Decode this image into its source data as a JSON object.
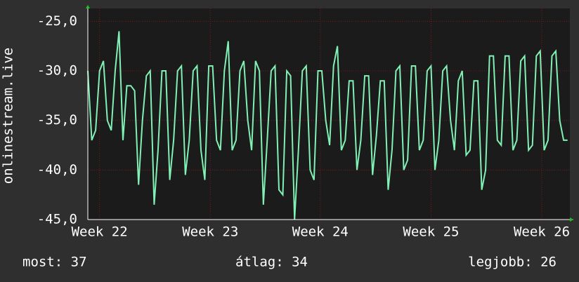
{
  "chart_data": {
    "type": "line",
    "y_label": "onlinestream.live",
    "xlim": [
      0,
      30.9
    ],
    "xticks": [
      {
        "value": 0.75,
        "label": "Week 22"
      },
      {
        "value": 7.85,
        "label": "Week 23"
      },
      {
        "value": 14.9,
        "label": "Week 24"
      },
      {
        "value": 22.0,
        "label": "Week 25"
      },
      {
        "value": 29.1,
        "label": "Week 26"
      }
    ],
    "ylim": [
      -45,
      -23.7
    ],
    "yticks": [
      {
        "value": -25,
        "label": "-25,0"
      },
      {
        "value": -30,
        "label": "-30,0"
      },
      {
        "value": -35,
        "label": "-35,0"
      },
      {
        "value": -40,
        "label": "-40,0"
      },
      {
        "value": -45,
        "label": "-45,0"
      }
    ],
    "grid": true,
    "x": [
      0,
      0.25,
      0.5,
      0.75,
      1,
      1.25,
      1.5,
      1.75,
      2,
      2.25,
      2.5,
      2.75,
      3,
      3.25,
      3.5,
      3.75,
      4,
      4.25,
      4.5,
      4.75,
      5,
      5.25,
      5.5,
      5.75,
      6,
      6.25,
      6.5,
      6.75,
      7,
      7.25,
      7.5,
      7.75,
      8,
      8.25,
      8.5,
      8.75,
      9,
      9.25,
      9.5,
      9.75,
      10,
      10.25,
      10.5,
      10.75,
      11,
      11.25,
      11.5,
      11.75,
      12,
      12.25,
      12.5,
      12.75,
      13,
      13.25,
      13.5,
      13.75,
      14,
      14.25,
      14.5,
      14.75,
      15,
      15.25,
      15.5,
      15.75,
      16,
      16.25,
      16.5,
      16.75,
      17,
      17.25,
      17.5,
      17.75,
      18,
      18.25,
      18.5,
      18.75,
      19,
      19.25,
      19.5,
      19.75,
      20,
      20.25,
      20.5,
      20.75,
      21,
      21.25,
      21.5,
      21.75,
      22,
      22.25,
      22.5,
      22.75,
      23,
      23.25,
      23.5,
      23.75,
      24,
      24.25,
      24.5,
      24.75,
      25,
      25.25,
      25.5,
      25.75,
      26,
      26.25,
      26.5,
      26.75,
      27,
      27.25,
      27.5,
      27.75,
      28,
      28.25,
      28.5,
      28.75,
      29,
      29.25,
      29.5,
      29.75,
      30,
      30.25,
      30.5,
      30.75
    ],
    "series": [
      {
        "name": "onlinestream.live",
        "color": "#80f0b4",
        "values": [
          -30,
          -37,
          -36,
          -30,
          -29,
          -35,
          -36,
          -30,
          -26,
          -37,
          -31.5,
          -31.5,
          -32,
          -41.5,
          -35,
          -30.5,
          -30,
          -43.5,
          -38,
          -30,
          -30,
          -41,
          -37,
          -30,
          -29.5,
          -40.5,
          -37,
          -30,
          -29.5,
          -38,
          -41,
          -29.5,
          -29.5,
          -37,
          -38,
          -30,
          -27,
          -38,
          -37,
          -30,
          -29,
          -35,
          -38,
          -29,
          -30,
          -43.5,
          -37,
          -30,
          -29.5,
          -42,
          -42.5,
          -30,
          -30.5,
          -45,
          -38,
          -30,
          -29.5,
          -40,
          -41,
          -30,
          -30,
          -35,
          -37.5,
          -29.5,
          -27.5,
          -38,
          -37,
          -31,
          -31,
          -40,
          -37,
          -30.5,
          -30.5,
          -40.5,
          -36.5,
          -31,
          -31,
          -42,
          -38,
          -30,
          -29.5,
          -40,
          -39,
          -29.5,
          -29.5,
          -38,
          -37,
          -30,
          -29.5,
          -40,
          -37,
          -30,
          -29.5,
          -35,
          -38,
          -31,
          -30,
          -38.5,
          -38,
          -31,
          -31,
          -42,
          -40,
          -28.5,
          -28.5,
          -37,
          -37.5,
          -28.5,
          -28.5,
          -38,
          -37,
          -29,
          -28.5,
          -38,
          -37.5,
          -28.5,
          -28,
          -38,
          -37,
          -28.5,
          -28,
          -35,
          -37,
          -37
        ]
      }
    ]
  },
  "footer": {
    "current": "most: 37",
    "average": "átlag: 34",
    "best": "legjobb: 26"
  }
}
